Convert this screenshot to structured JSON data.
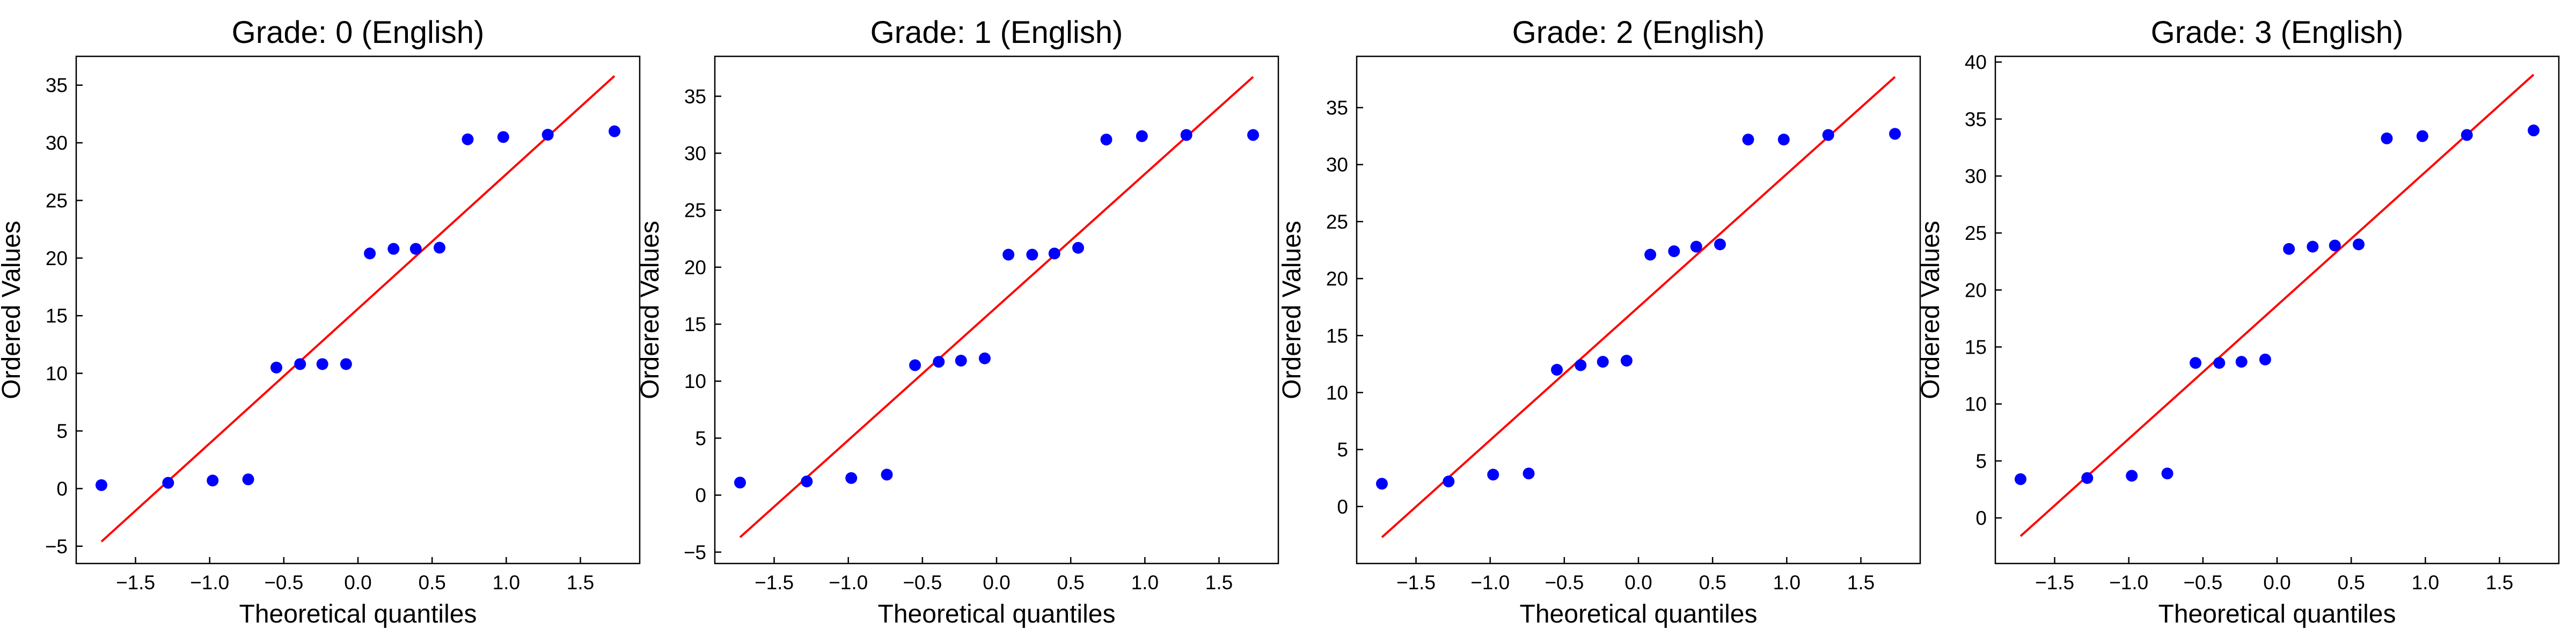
{
  "chart_data": [
    {
      "type": "scatter",
      "title": "Grade: 0 (English)",
      "xlabel": "Theoretical quantiles",
      "ylabel": "Ordered Values",
      "xlim": [
        -1.9,
        1.9
      ],
      "ylim": [
        -6.5,
        37.5
      ],
      "xticks": [
        -1.5,
        -1.0,
        -0.5,
        0.0,
        0.5,
        1.0,
        1.5
      ],
      "xtick_labels": [
        "−1.5",
        "−1.0",
        "−0.5",
        "0.0",
        "0.5",
        "1.0",
        "1.5"
      ],
      "yticks": [
        -5,
        0,
        5,
        10,
        15,
        20,
        25,
        30,
        35
      ],
      "ytick_labels": [
        "−5",
        "0",
        "5",
        "10",
        "15",
        "20",
        "25",
        "30",
        "35"
      ],
      "grid": false,
      "series": [
        {
          "x": [
            -1.73,
            -1.28,
            -0.98,
            -0.74,
            -0.55,
            -0.39,
            -0.24,
            -0.08,
            0.08,
            0.24,
            0.39,
            0.55,
            0.74,
            0.98,
            1.28,
            1.73
          ],
          "y": [
            0.3,
            0.5,
            0.7,
            0.8,
            10.5,
            10.8,
            10.8,
            10.8,
            20.4,
            20.8,
            20.8,
            20.9,
            30.3,
            30.5,
            30.7,
            31.0
          ]
        }
      ],
      "fit_line": {
        "x": [
          -1.73,
          1.73
        ],
        "y": [
          -4.6,
          35.8
        ]
      }
    },
    {
      "type": "scatter",
      "title": "Grade: 1 (English)",
      "xlabel": "Theoretical quantiles",
      "ylabel": "Ordered Values",
      "xlim": [
        -1.9,
        1.9
      ],
      "ylim": [
        -6.0,
        38.5
      ],
      "xticks": [
        -1.5,
        -1.0,
        -0.5,
        0.0,
        0.5,
        1.0,
        1.5
      ],
      "xtick_labels": [
        "−1.5",
        "−1.0",
        "−0.5",
        "0.0",
        "0.5",
        "1.0",
        "1.5"
      ],
      "yticks": [
        -5,
        0,
        5,
        10,
        15,
        20,
        25,
        30,
        35
      ],
      "ytick_labels": [
        "−5",
        "0",
        "5",
        "10",
        "15",
        "20",
        "25",
        "30",
        "35"
      ],
      "grid": false,
      "series": [
        {
          "x": [
            -1.73,
            -1.28,
            -0.98,
            -0.74,
            -0.55,
            -0.39,
            -0.24,
            -0.08,
            0.08,
            0.24,
            0.39,
            0.55,
            0.74,
            0.98,
            1.28,
            1.73
          ],
          "y": [
            1.1,
            1.2,
            1.5,
            1.8,
            11.4,
            11.7,
            11.8,
            12.0,
            21.1,
            21.1,
            21.2,
            21.7,
            31.2,
            31.5,
            31.6,
            31.6
          ]
        }
      ],
      "fit_line": {
        "x": [
          -1.73,
          1.73
        ],
        "y": [
          -3.7,
          36.7
        ]
      }
    },
    {
      "type": "scatter",
      "title": "Grade: 2 (English)",
      "xlabel": "Theoretical quantiles",
      "ylabel": "Ordered Values",
      "xlim": [
        -1.9,
        1.9
      ],
      "ylim": [
        -5.0,
        39.5
      ],
      "xticks": [
        -1.5,
        -1.0,
        -0.5,
        0.0,
        0.5,
        1.0,
        1.5
      ],
      "xtick_labels": [
        "−1.5",
        "−1.0",
        "−0.5",
        "0.0",
        "0.5",
        "1.0",
        "1.5"
      ],
      "yticks": [
        0,
        5,
        10,
        15,
        20,
        25,
        30,
        35
      ],
      "ytick_labels": [
        "0",
        "5",
        "10",
        "15",
        "20",
        "25",
        "30",
        "35"
      ],
      "grid": false,
      "series": [
        {
          "x": [
            -1.73,
            -1.28,
            -0.98,
            -0.74,
            -0.55,
            -0.39,
            -0.24,
            -0.08,
            0.08,
            0.24,
            0.39,
            0.55,
            0.74,
            0.98,
            1.28,
            1.73
          ],
          "y": [
            2.0,
            2.2,
            2.8,
            2.9,
            12.0,
            12.4,
            12.7,
            12.8,
            22.1,
            22.4,
            22.8,
            23.0,
            32.2,
            32.2,
            32.6,
            32.7
          ]
        }
      ],
      "fit_line": {
        "x": [
          -1.73,
          1.73
        ],
        "y": [
          -2.7,
          37.7
        ]
      }
    },
    {
      "type": "scatter",
      "title": "Grade: 3 (English)",
      "xlabel": "Theoretical quantiles",
      "ylabel": "Ordered Values",
      "xlim": [
        -1.9,
        1.9
      ],
      "ylim": [
        -4.0,
        40.5
      ],
      "xticks": [
        -1.5,
        -1.0,
        -0.5,
        0.0,
        0.5,
        1.0,
        1.5
      ],
      "xtick_labels": [
        "−1.5",
        "−1.0",
        "−0.5",
        "0.0",
        "0.5",
        "1.0",
        "1.5"
      ],
      "yticks": [
        0,
        5,
        10,
        15,
        20,
        25,
        30,
        35,
        40
      ],
      "ytick_labels": [
        "0",
        "5",
        "10",
        "15",
        "20",
        "25",
        "30",
        "35",
        "40"
      ],
      "grid": false,
      "series": [
        {
          "x": [
            -1.73,
            -1.28,
            -0.98,
            -0.74,
            -0.55,
            -0.39,
            -0.24,
            -0.08,
            0.08,
            0.24,
            0.39,
            0.55,
            0.74,
            0.98,
            1.28,
            1.73
          ],
          "y": [
            3.4,
            3.5,
            3.7,
            3.9,
            13.6,
            13.6,
            13.7,
            13.9,
            23.6,
            23.8,
            23.9,
            24.0,
            33.3,
            33.5,
            33.6,
            34.0
          ]
        }
      ],
      "fit_line": {
        "x": [
          -1.73,
          1.73
        ],
        "y": [
          -1.6,
          38.9
        ]
      }
    }
  ],
  "colors": {
    "points": "#0000ff",
    "fit_line": "#ff0000",
    "axes": "#000000"
  }
}
